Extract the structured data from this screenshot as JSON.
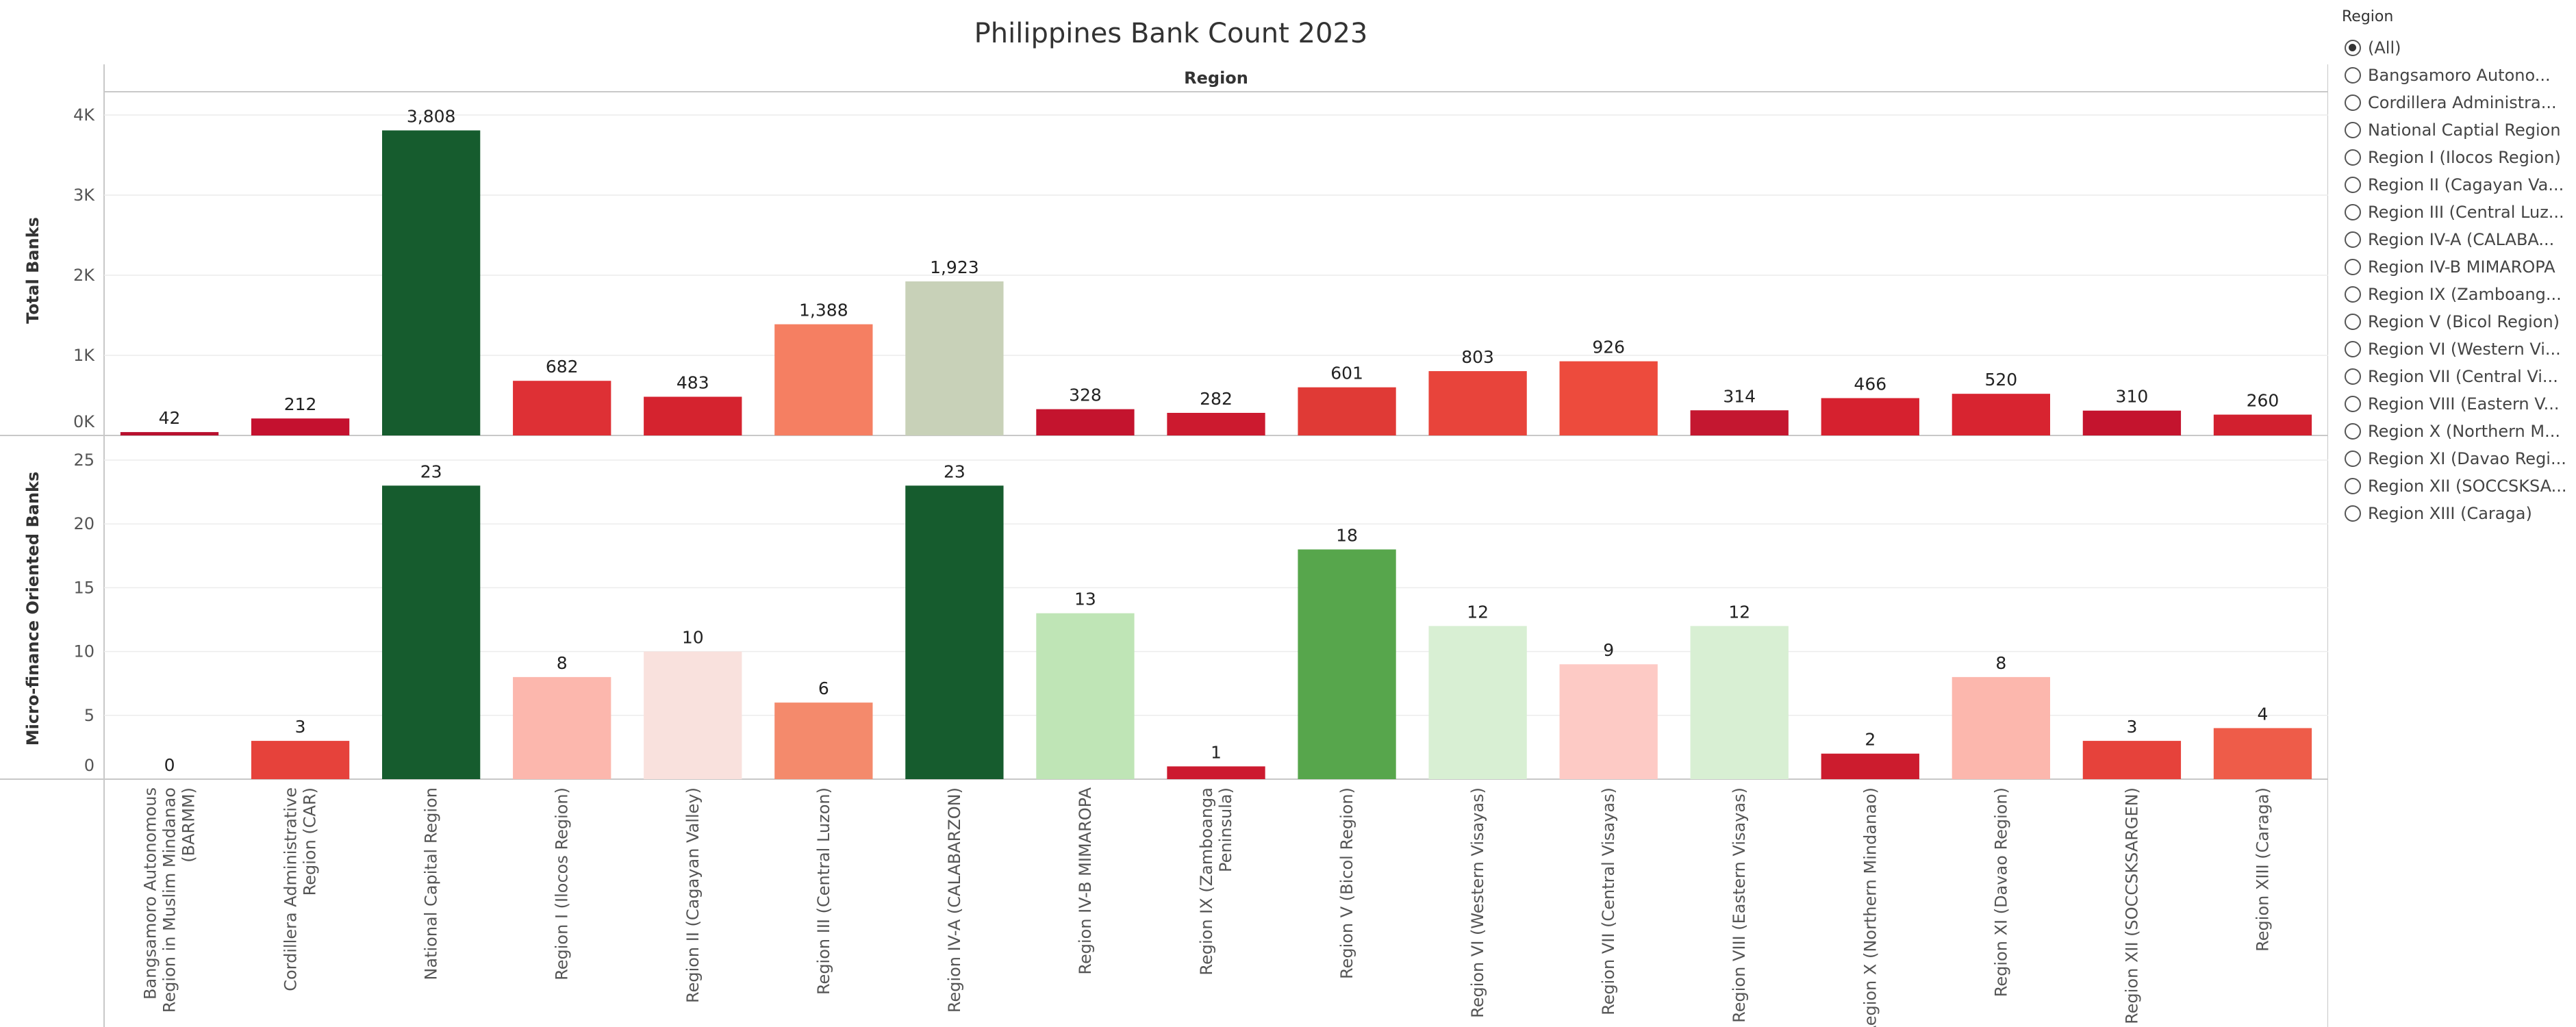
{
  "chart_data": {
    "type": "bar",
    "title": "Philippines Bank Count 2023",
    "column_header": "Region",
    "categories": [
      [
        "Bangsamoro Autonomous",
        "Region in Muslim Mindanao",
        "(BARMM)"
      ],
      [
        "Cordillera Administrative",
        "Region (CAR)"
      ],
      [
        "National Capital Region"
      ],
      [
        "Region I (Ilocos Region)"
      ],
      [
        "Region II (Cagayan Valley)"
      ],
      [
        "Region III (Central Luzon)"
      ],
      [
        "Region IV-A (CALABARZON)"
      ],
      [
        "Region IV-B MIMAROPA"
      ],
      [
        "Region IX (Zamboanga",
        "Peninsula)"
      ],
      [
        "Region V (Bicol Region)"
      ],
      [
        "Region VI (Western Visayas)"
      ],
      [
        "Region VII (Central Visayas)"
      ],
      [
        "Region VIII (Eastern Visayas)"
      ],
      [
        "Region X (Northern Mindanao)"
      ],
      [
        "Region XI (Davao Region)"
      ],
      [
        "Region XII (SOCCSKSARGEN)"
      ],
      [
        "Region XIII (Caraga)"
      ]
    ],
    "panels": [
      {
        "ylabel": "Total Banks",
        "ylim": [
          0,
          4000
        ],
        "ticks": [
          0,
          1000,
          2000,
          3000,
          4000
        ],
        "tick_labels": [
          "0K",
          "1K",
          "2K",
          "3K",
          "4K"
        ],
        "values": [
          42,
          212,
          3808,
          682,
          483,
          1388,
          1923,
          328,
          282,
          601,
          803,
          926,
          314,
          466,
          520,
          310,
          260
        ],
        "value_labels": [
          "42",
          "212",
          "3,808",
          "682",
          "483",
          "1,388",
          "1,923",
          "328",
          "282",
          "601",
          "803",
          "926",
          "314",
          "466",
          "520",
          "310",
          "260"
        ],
        "colors": [
          "#b8102e",
          "#c4112f",
          "#165c2e",
          "#de3035",
          "#d5232f",
          "#f57f62",
          "#c8d1b8",
          "#c4142e",
          "#cc1a2f",
          "#e03a36",
          "#e8443b",
          "#ed4b3d",
          "#c41730",
          "#d6212f",
          "#d82430",
          "#c4142e",
          "#d2202f"
        ]
      },
      {
        "ylabel": "Micro-finance Oriented Banks",
        "ylim": [
          0,
          25
        ],
        "ticks": [
          0,
          5,
          10,
          15,
          20,
          25
        ],
        "tick_labels": [
          "0",
          "5",
          "10",
          "15",
          "20",
          "25"
        ],
        "values": [
          0,
          3,
          23,
          8,
          10,
          6,
          23,
          13,
          1,
          18,
          12,
          9,
          12,
          2,
          8,
          3,
          4
        ],
        "value_labels": [
          "0",
          "3",
          "23",
          "8",
          "10",
          "6",
          "23",
          "13",
          "1",
          "18",
          "12",
          "9",
          "12",
          "2",
          "8",
          "3",
          "4"
        ],
        "colors": [
          "#b5102b",
          "#e6423b",
          "#165c2e",
          "#fcb7ad",
          "#f9e1dd",
          "#f48a6c",
          "#165c2e",
          "#bfe5b6",
          "#cc1a2f",
          "#57a64c",
          "#d8efd3",
          "#fdcac5",
          "#d8efd3",
          "#cc1c2e",
          "#fcb7ad",
          "#e6423b",
          "#ee5c49"
        ]
      }
    ]
  },
  "filter": {
    "title": "Region",
    "options": [
      "(All)",
      "Bangsamoro Autono...",
      "Cordillera Administra...",
      "National Captial Region",
      "Region I (Ilocos Region)",
      "Region II (Cagayan Va...",
      "Region III (Central Luz...",
      "Region IV-A (CALABA...",
      "Region IV-B MIMAROPA",
      "Region IX (Zamboang...",
      "Region V (Bicol Region)",
      "Region VI (Western Vi...",
      "Region VII (Central Vi...",
      "Region VIII (Eastern V...",
      "Region X (Northern M...",
      "Region XI (Davao Regi...",
      "Region XII (SOCCSKSA...",
      "Region XIII (Caraga)"
    ],
    "selected": "(All)"
  }
}
